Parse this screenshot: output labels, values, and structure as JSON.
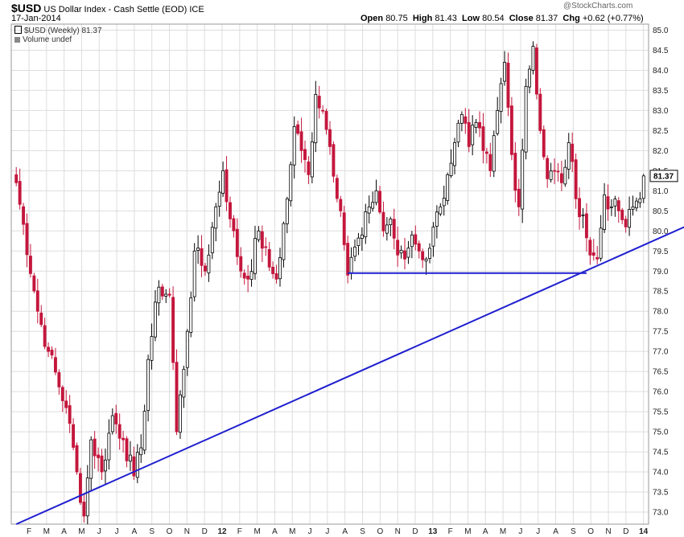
{
  "header": {
    "symbol": "$USD",
    "name": "US Dollar Index - Cash Settle (EOD)",
    "exchange": "ICE",
    "date": "17-Jan-2014",
    "watermark": "@StockCharts.com",
    "ohlc": {
      "open_label": "Open",
      "open": "80.75",
      "high_label": "High",
      "high": "81.43",
      "low_label": "Low",
      "low": "80.54",
      "close_label": "Close",
      "close": "81.37",
      "chg_label": "Chg",
      "chg": "+0.62 (+0.77%)"
    }
  },
  "legend": {
    "series_label": "$USD (Weekly) 81.37",
    "volume_label": "Volume undef"
  },
  "chart_data": {
    "type": "candlestick",
    "interval": "weekly",
    "last_value_label": "81.37",
    "ylim": [
      72.7,
      85.15
    ],
    "y_ticks": [
      73.0,
      73.5,
      74.0,
      74.5,
      75.0,
      75.5,
      76.0,
      76.5,
      77.0,
      77.5,
      78.0,
      78.5,
      79.0,
      79.5,
      80.0,
      80.5,
      81.0,
      81.5,
      82.0,
      82.5,
      83.0,
      83.5,
      84.0,
      84.5,
      85.0
    ],
    "x_ticks": [
      "F",
      "M",
      "A",
      "M",
      "J",
      "J",
      "A",
      "S",
      "O",
      "N",
      "D",
      "12",
      "F",
      "M",
      "A",
      "M",
      "J",
      "J",
      "A",
      "S",
      "O",
      "N",
      "D",
      "13",
      "F",
      "M",
      "A",
      "M",
      "J",
      "J",
      "A",
      "S",
      "O",
      "N",
      "D",
      "14"
    ],
    "x_ticks_bold": [
      "12",
      "13",
      "14"
    ],
    "colors": {
      "up": "#000000",
      "down": "#c4163c",
      "trendline": "#1f1fd0",
      "grid": "#dddddd"
    },
    "trendlines": [
      {
        "name": "support",
        "points": [
          [
            0,
            72.7
          ],
          [
            190,
            80.2
          ]
        ]
      },
      {
        "name": "horizontal",
        "points": [
          [
            93,
            78.95
          ],
          [
            160,
            78.95
          ]
        ]
      }
    ],
    "close_anchors": [
      [
        0,
        81.2
      ],
      [
        6,
        78.0
      ],
      [
        9,
        77.0
      ],
      [
        14,
        75.6
      ],
      [
        17,
        74.0
      ],
      [
        19,
        72.9
      ],
      [
        21,
        74.8
      ],
      [
        24,
        74.0
      ],
      [
        27,
        75.4
      ],
      [
        30,
        74.8
      ],
      [
        33,
        73.9
      ],
      [
        35,
        74.6
      ],
      [
        37,
        76.8
      ],
      [
        40,
        78.6
      ],
      [
        43,
        78.4
      ],
      [
        45,
        75.0
      ],
      [
        48,
        77.5
      ],
      [
        50,
        79.5
      ],
      [
        53,
        79.0
      ],
      [
        56,
        80.6
      ],
      [
        58,
        81.5
      ],
      [
        60,
        80.3
      ],
      [
        63,
        79.0
      ],
      [
        65,
        78.8
      ],
      [
        68,
        80.0
      ],
      [
        71,
        79.1
      ],
      [
        73,
        78.8
      ],
      [
        76,
        80.8
      ],
      [
        78,
        82.6
      ],
      [
        80,
        82.0
      ],
      [
        82,
        81.4
      ],
      [
        84,
        83.4
      ],
      [
        86,
        83.0
      ],
      [
        88,
        82.1
      ],
      [
        91,
        80.5
      ],
      [
        93,
        78.9
      ],
      [
        95,
        79.6
      ],
      [
        97,
        79.9
      ],
      [
        99,
        80.6
      ],
      [
        101,
        81.0
      ],
      [
        103,
        80.0
      ],
      [
        105,
        80.3
      ],
      [
        107,
        79.4
      ],
      [
        109,
        79.3
      ],
      [
        111,
        79.9
      ],
      [
        113,
        79.5
      ],
      [
        115,
        79.3
      ],
      [
        117,
        80.1
      ],
      [
        119,
        80.6
      ],
      [
        121,
        81.4
      ],
      [
        123,
        82.2
      ],
      [
        125,
        82.9
      ],
      [
        127,
        82.1
      ],
      [
        129,
        82.7
      ],
      [
        131,
        82.0
      ],
      [
        133,
        81.5
      ],
      [
        135,
        83.0
      ],
      [
        137,
        84.2
      ],
      [
        139,
        81.9
      ],
      [
        141,
        80.6
      ],
      [
        143,
        83.6
      ],
      [
        145,
        84.6
      ],
      [
        147,
        82.5
      ],
      [
        149,
        81.3
      ],
      [
        151,
        81.5
      ],
      [
        153,
        81.2
      ],
      [
        155,
        82.2
      ],
      [
        157,
        80.8
      ],
      [
        159,
        80.4
      ],
      [
        161,
        79.4
      ],
      [
        163,
        79.3
      ],
      [
        165,
        80.9
      ],
      [
        167,
        80.6
      ],
      [
        169,
        80.5
      ],
      [
        171,
        80.1
      ],
      [
        173,
        80.6
      ],
      [
        175,
        80.8
      ],
      [
        176,
        81.37
      ]
    ],
    "candle_count": 177
  }
}
